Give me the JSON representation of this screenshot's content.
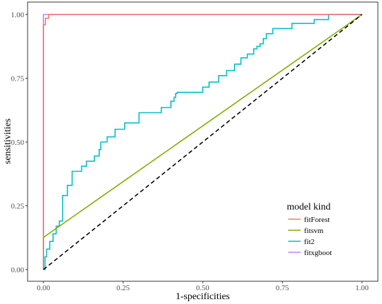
{
  "chart_data": {
    "type": "line",
    "xlabel": "1-specificities",
    "ylabel": "sensitivities",
    "xlim": [
      -0.05,
      1.05
    ],
    "ylim": [
      -0.05,
      1.05
    ],
    "x_ticks": [
      "0.00",
      "0.25",
      "0.50",
      "0.75",
      "1.00"
    ],
    "y_ticks": [
      "0.00",
      "0.25",
      "0.50",
      "0.75",
      "1.00"
    ],
    "grid": false,
    "legend": {
      "title": "model kind",
      "placement": "bottom-right"
    },
    "reference_line": {
      "x": [
        0,
        1
      ],
      "y": [
        0,
        1
      ],
      "style": "dashed",
      "color": "#000000"
    },
    "series": [
      {
        "name": "fitForest",
        "color": "#F8766D",
        "x": [
          0,
          0,
          0.006,
          0.006,
          0.016,
          0.016,
          1
        ],
        "y": [
          0,
          0.96,
          0.96,
          0.985,
          0.985,
          1,
          1
        ]
      },
      {
        "name": "fitsvm",
        "color": "#7CAE00",
        "x": [
          0,
          0,
          0.01,
          1
        ],
        "y": [
          0,
          0.125,
          0.135,
          1
        ]
      },
      {
        "name": "fit2",
        "color": "#00BFC4",
        "x": [
          0,
          0.005,
          0.005,
          0.01,
          0.01,
          0.02,
          0.02,
          0.03,
          0.03,
          0.04,
          0.04,
          0.05,
          0.05,
          0.06,
          0.06,
          0.075,
          0.075,
          0.09,
          0.09,
          0.12,
          0.12,
          0.135,
          0.135,
          0.16,
          0.16,
          0.175,
          0.175,
          0.18,
          0.18,
          0.2,
          0.2,
          0.225,
          0.225,
          0.255,
          0.255,
          0.3,
          0.3,
          0.37,
          0.37,
          0.4,
          0.4,
          0.41,
          0.41,
          0.415,
          0.415,
          0.42,
          0.42,
          0.5,
          0.5,
          0.52,
          0.52,
          0.55,
          0.55,
          0.575,
          0.575,
          0.6,
          0.6,
          0.62,
          0.62,
          0.64,
          0.64,
          0.66,
          0.66,
          0.67,
          0.67,
          0.68,
          0.68,
          0.69,
          0.69,
          0.7,
          0.7,
          0.72,
          0.72,
          0.78,
          0.78,
          0.85,
          0.85,
          0.895,
          0.895,
          1
        ],
        "y": [
          0,
          0,
          0.05,
          0.05,
          0.08,
          0.08,
          0.11,
          0.11,
          0.14,
          0.14,
          0.17,
          0.17,
          0.19,
          0.19,
          0.29,
          0.29,
          0.33,
          0.33,
          0.385,
          0.385,
          0.405,
          0.405,
          0.425,
          0.425,
          0.445,
          0.445,
          0.47,
          0.47,
          0.5,
          0.5,
          0.52,
          0.52,
          0.55,
          0.55,
          0.575,
          0.575,
          0.615,
          0.615,
          0.635,
          0.635,
          0.66,
          0.66,
          0.675,
          0.675,
          0.69,
          0.69,
          0.695,
          0.695,
          0.715,
          0.715,
          0.735,
          0.735,
          0.76,
          0.76,
          0.78,
          0.78,
          0.805,
          0.805,
          0.83,
          0.83,
          0.845,
          0.845,
          0.865,
          0.865,
          0.875,
          0.875,
          0.885,
          0.885,
          0.905,
          0.905,
          0.925,
          0.925,
          0.945,
          0.945,
          0.965,
          0.965,
          0.98,
          0.98,
          1,
          1
        ]
      },
      {
        "name": "fitxgboot",
        "color": "#C77CFF",
        "x": [
          0,
          0,
          1
        ],
        "y": [
          0,
          1,
          1
        ]
      }
    ]
  }
}
